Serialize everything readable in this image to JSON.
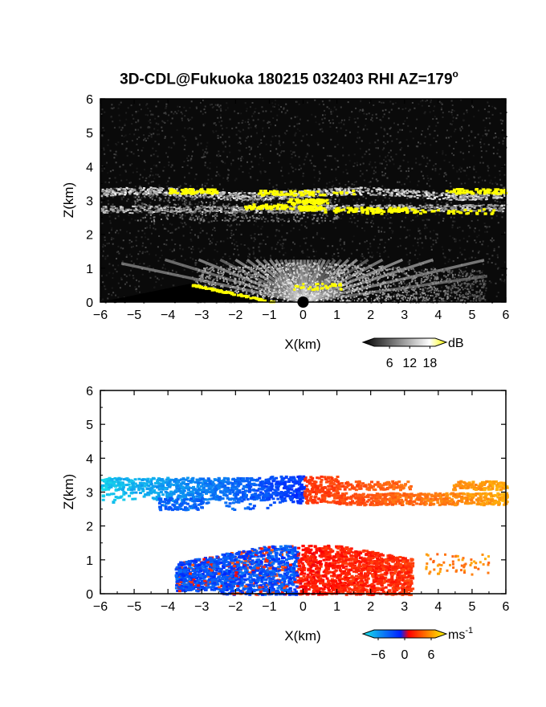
{
  "title": {
    "text": "3D-CDL@Fukuoka 180215 032403 RHI AZ=179",
    "sup": "o"
  },
  "chart_data": [
    {
      "type": "heatmap",
      "panel": "snr",
      "xlabel": "X(km)",
      "ylabel": "Z(km)",
      "xlim": [
        -6,
        6
      ],
      "ylim": [
        0,
        6
      ],
      "xticks": [
        -6,
        -5,
        -4,
        -3,
        -2,
        -1,
        0,
        1,
        2,
        3,
        4,
        5,
        6
      ],
      "yticks": [
        0,
        1,
        2,
        3,
        4,
        5,
        6
      ],
      "colorbar": {
        "unit": "dB",
        "ticks": [
          6,
          12,
          18
        ],
        "range": [
          0,
          21
        ],
        "colors": [
          "#000000",
          "#ffffff",
          "#ffff00"
        ]
      },
      "features": [
        {
          "name": "cloud layer",
          "x": [
            -6,
            6
          ],
          "z": [
            2.7,
            3.4
          ],
          "level_db": 14
        },
        {
          "name": "boundary layer",
          "x": [
            -3.2,
            5.8
          ],
          "z": [
            0,
            1.2
          ],
          "level_db": 10
        }
      ]
    },
    {
      "type": "heatmap",
      "panel": "doppler_velocity",
      "xlabel": "X(km)",
      "ylabel": "Z(km)",
      "xlim": [
        -6,
        6
      ],
      "ylim": [
        0,
        6
      ],
      "xticks": [
        -6,
        -5,
        -4,
        -3,
        -2,
        -1,
        0,
        1,
        2,
        3,
        4,
        5,
        6
      ],
      "yticks": [
        0,
        1,
        2,
        3,
        4,
        5,
        6
      ],
      "colorbar": {
        "unit": "ms",
        "unit_sup": "-1",
        "ticks": [
          -6,
          0,
          6
        ],
        "range": [
          -8,
          8
        ],
        "colors": [
          "#18e8e8",
          "#0020ff",
          "#ff0000",
          "#ffff00"
        ]
      },
      "features": [
        {
          "name": "cloud layer",
          "x": [
            -6,
            6
          ],
          "z": [
            2.5,
            3.6
          ],
          "velocity_left": -5,
          "velocity_right": 6
        },
        {
          "name": "boundary layer",
          "x": [
            -4,
            5.5
          ],
          "z": [
            0,
            1.5
          ],
          "velocity_left": -3,
          "velocity_right": 3
        }
      ]
    }
  ]
}
